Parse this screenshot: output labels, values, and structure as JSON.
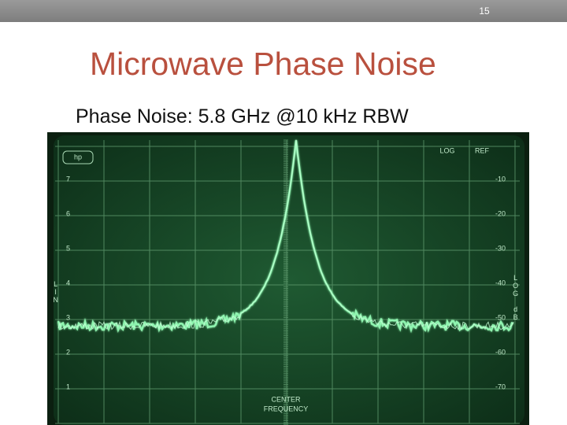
{
  "header": {
    "page_number": "15"
  },
  "title": "Microwave Phase Noise",
  "subtitle": "Phase Noise: 5.8 GHz @10 kHz RBW",
  "screen": {
    "logo": "hp",
    "top_labels": [
      "LOG",
      "REF"
    ],
    "left_scale": [
      "7",
      "6",
      "5",
      "4",
      "3",
      "2",
      "1"
    ],
    "right_scale": [
      "-10",
      "-20",
      "-30",
      "-40",
      "-50",
      "-60",
      "-70"
    ],
    "left_axis_label": "LIN",
    "right_axis_label": "LOG dB",
    "bottom_label": [
      "CENTER",
      "FREQUENCY"
    ]
  }
}
